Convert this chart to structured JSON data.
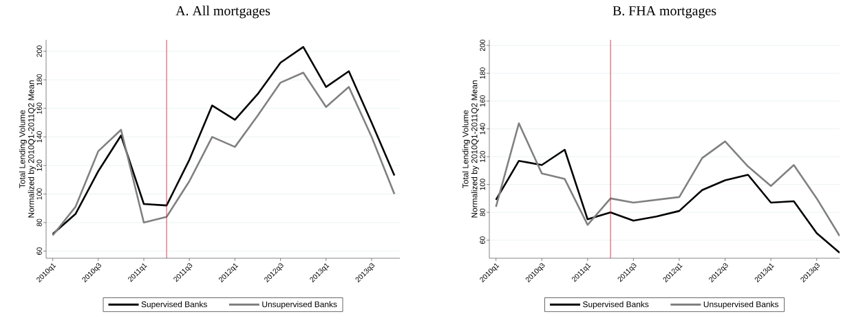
{
  "chart_data": [
    {
      "type": "line",
      "title": "A. All mortgages",
      "ylabel": "Total Lending Volume Normalized by 2010Q1-2011Q2 Mean",
      "categories": [
        "2010q1",
        null,
        "2010q3",
        null,
        "2011q1",
        null,
        "2011q3",
        null,
        "2012q1",
        null,
        "2012q3",
        null,
        "2013q1",
        null,
        "2013q3",
        null
      ],
      "series": [
        {
          "name": "Supervised Banks",
          "color": "#000000",
          "values": [
            72,
            86,
            116,
            141,
            93,
            92,
            124,
            162,
            152,
            170,
            192,
            203,
            175,
            186,
            150,
            113
          ]
        },
        {
          "name": "Unsupervised Banks",
          "color": "#808080",
          "values": [
            71,
            91,
            130,
            145,
            80,
            84,
            109,
            140,
            133,
            155,
            178,
            185,
            161,
            175,
            140,
            100
          ]
        }
      ],
      "ylim": [
        55,
        208
      ],
      "yticks": [
        60,
        80,
        100,
        120,
        140,
        160,
        180,
        200
      ],
      "grid": "y",
      "legend": "bottom",
      "marker": "none",
      "line_style": "solid"
    },
    {
      "type": "line",
      "title": "B. FHA mortgages",
      "ylabel": "Total Lending Volume Normalized by 2010Q1-2011Q2 Mean",
      "categories": [
        "2010q1",
        null,
        "2010q3",
        null,
        "2011q1",
        null,
        "2011q3",
        null,
        "2012q1",
        null,
        "2012q3",
        null,
        "2013q1",
        null,
        "2013q3",
        null
      ],
      "series": [
        {
          "name": "Supervised Banks",
          "color": "#000000",
          "values": [
            89,
            117,
            114,
            125,
            75,
            80,
            74,
            77,
            81,
            96,
            103,
            107,
            87,
            88,
            65,
            51
          ]
        },
        {
          "name": "Unsupervised Banks",
          "color": "#808080",
          "values": [
            84,
            144,
            108,
            104,
            71,
            90,
            87,
            89,
            91,
            119,
            131,
            113,
            99,
            114,
            90,
            63
          ]
        }
      ],
      "ylim": [
        47,
        204
      ],
      "yticks": [
        60,
        80,
        100,
        120,
        140,
        160,
        180,
        200
      ],
      "grid": "y",
      "legend": "bottom",
      "marker": "none",
      "line_style": "solid"
    }
  ]
}
